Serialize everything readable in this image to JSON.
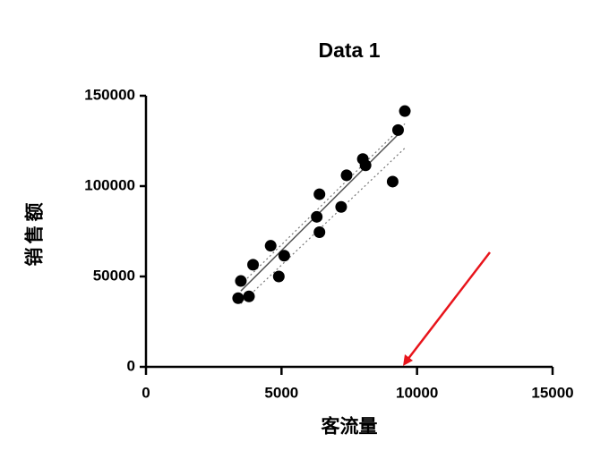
{
  "chart_data": {
    "type": "scatter",
    "title": "Data 1",
    "x_label": "客流量",
    "y_label": "销售额",
    "x": [
      3400,
      3800,
      3500,
      3950,
      4600,
      4900,
      5100,
      6300,
      6400,
      6400,
      7200,
      7400,
      8000,
      8100,
      9100,
      9300,
      9550
    ],
    "values": [
      38000,
      39000,
      47500,
      56500,
      67000,
      50000,
      61500,
      83000,
      95500,
      74500,
      88500,
      106000,
      115000,
      111500,
      102500,
      131000,
      141500
    ],
    "color": "#000000",
    "fit": {
      "x": [
        3500,
        9400
      ],
      "values": [
        42000,
        130000
      ],
      "color": "#555555"
    },
    "band_upper": {
      "x": [
        3500,
        9550
      ],
      "values": [
        45500,
        134500
      ]
    },
    "band_lower": {
      "x": [
        3500,
        9550
      ],
      "values": [
        35000,
        121000
      ]
    },
    "xlim": [
      0,
      15000
    ],
    "xticks": [
      0,
      5000,
      10000,
      15000
    ],
    "ylim": [
      0,
      150000
    ],
    "yticks": [
      0,
      50000,
      100000,
      150000
    ]
  }
}
